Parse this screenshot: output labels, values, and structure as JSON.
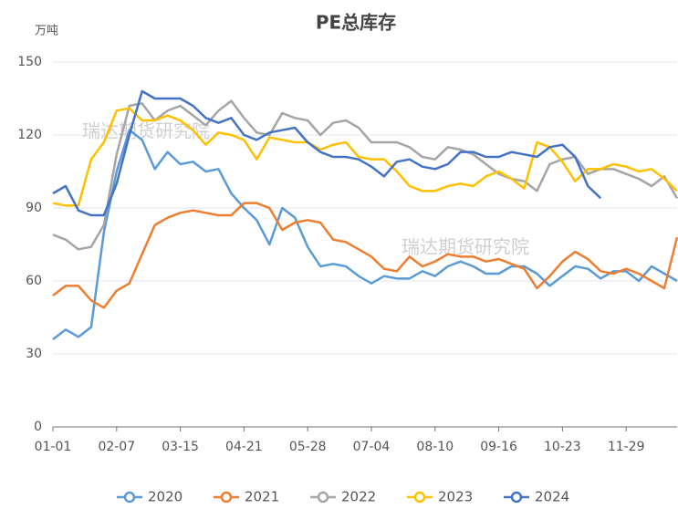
{
  "chart_data": {
    "type": "line",
    "title": "PE总库存",
    "y_label": "万吨",
    "watermarks": [
      "瑞达期货研究院",
      "瑞达期货研究院"
    ],
    "categories": [
      "01-01",
      null,
      null,
      null,
      null,
      "02-07",
      null,
      null,
      null,
      null,
      "03-15",
      null,
      null,
      null,
      null,
      "04-21",
      null,
      null,
      null,
      null,
      "05-28",
      null,
      null,
      null,
      null,
      "07-04",
      null,
      null,
      null,
      null,
      "08-10",
      null,
      null,
      null,
      null,
      "09-16",
      null,
      null,
      null,
      null,
      "10-23",
      null,
      null,
      null,
      null,
      "11-29",
      null,
      null,
      null,
      null
    ],
    "ylim": [
      0,
      150
    ],
    "yticks": [
      0,
      30,
      60,
      90,
      120,
      150
    ],
    "grid": true,
    "legend": "bottom",
    "series": [
      {
        "name": "2020",
        "color": "#5b9bd5",
        "values": [
          36,
          40,
          37,
          41,
          80,
          105,
          122,
          118,
          106,
          113,
          108,
          109,
          105,
          106,
          96,
          90,
          85,
          75,
          90,
          86,
          74,
          66,
          67,
          66,
          62,
          59,
          62,
          61,
          61,
          64,
          62,
          66,
          68,
          66,
          63,
          63,
          66,
          66,
          63,
          58,
          62,
          66,
          65,
          61,
          64,
          64,
          60,
          66,
          63,
          60
        ]
      },
      {
        "name": "2021",
        "color": "#ed7d31",
        "values": [
          54,
          58,
          58,
          52,
          49,
          56,
          59,
          71,
          83,
          86,
          88,
          89,
          88,
          87,
          87,
          92,
          92,
          90,
          81,
          84,
          85,
          84,
          77,
          76,
          73,
          70,
          65,
          64,
          70,
          66,
          68,
          71,
          70,
          70,
          68,
          69,
          67,
          65,
          57,
          62,
          68,
          72,
          69,
          64,
          63,
          65,
          63,
          60,
          57,
          78
        ]
      },
      {
        "name": "2022",
        "color": "#a5a5a5",
        "values": [
          79,
          77,
          73,
          74,
          83,
          112,
          132,
          133,
          126,
          130,
          132,
          128,
          124,
          130,
          134,
          127,
          121,
          120,
          129,
          127,
          126,
          120,
          125,
          126,
          123,
          117,
          117,
          117,
          115,
          111,
          110,
          115,
          114,
          112,
          108,
          104,
          102,
          101,
          97,
          108,
          110,
          111,
          104,
          106,
          106,
          104,
          102,
          99,
          103,
          94
        ]
      },
      {
        "name": "2023",
        "color": "#ffc000",
        "values": [
          92,
          91,
          91,
          110,
          117,
          130,
          131,
          126,
          126,
          128,
          126,
          122,
          116,
          121,
          120,
          118,
          110,
          119,
          118,
          117,
          117,
          114,
          116,
          117,
          111,
          110,
          110,
          105,
          99,
          97,
          97,
          99,
          100,
          99,
          103,
          105,
          102,
          98,
          117,
          115,
          109,
          101,
          106,
          106,
          108,
          107,
          105,
          106,
          102,
          97
        ]
      },
      {
        "name": "2024",
        "color": "#4472c4",
        "values": [
          96,
          99,
          89,
          87,
          87,
          100,
          120,
          138,
          135,
          135,
          135,
          132,
          127,
          125,
          127,
          120,
          118,
          121,
          122,
          123,
          117,
          113,
          111,
          111,
          110,
          107,
          103,
          109,
          110,
          107,
          106,
          108,
          113,
          113,
          111,
          111,
          113,
          112,
          111,
          115,
          116,
          111,
          99,
          94,
          null,
          null,
          null,
          null,
          null,
          null
        ]
      }
    ]
  }
}
